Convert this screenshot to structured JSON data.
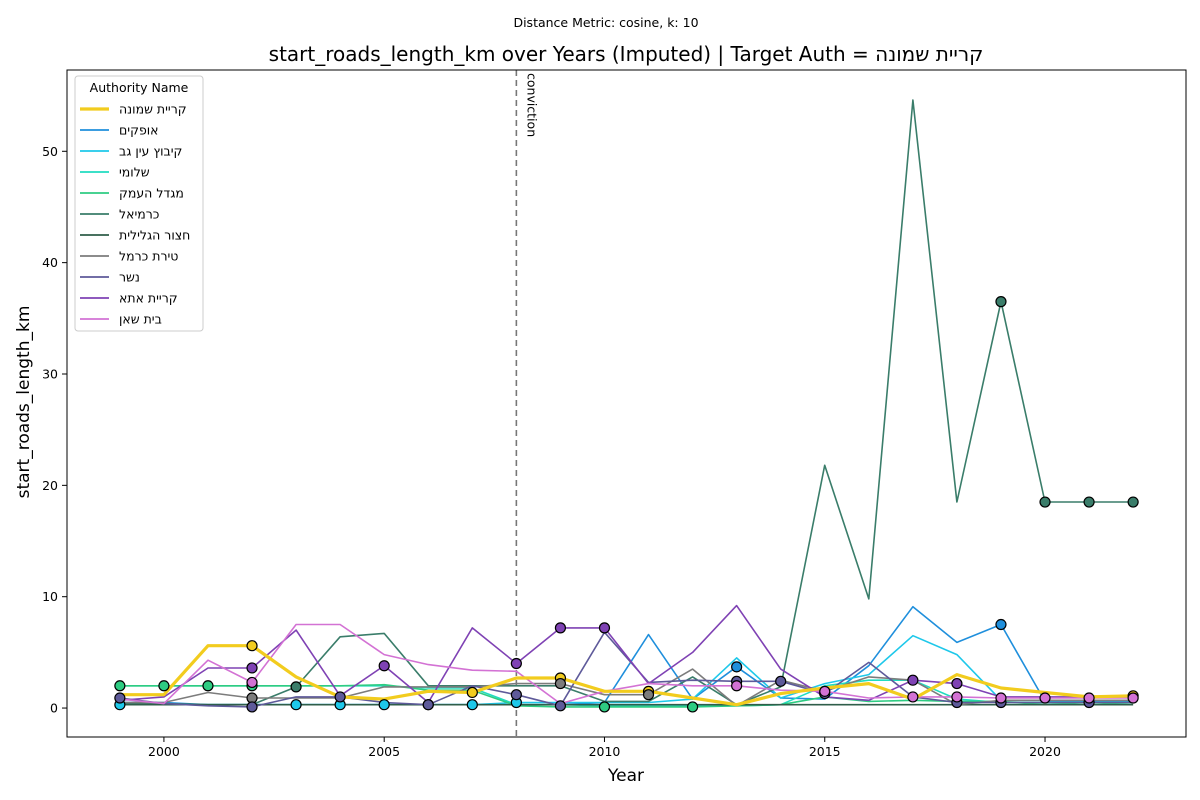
{
  "chart_data": {
    "type": "line",
    "suptitle": "Distance Metric: cosine, k: 10",
    "title": "start_roads_length_km over Years (Imputed) | Target Auth = קריית שמונה",
    "xlabel": "Year",
    "ylabel": "start_roads_length_km",
    "xlim": [
      1997.8,
      2023.2
    ],
    "ylim": [
      -2.6,
      57.3
    ],
    "xticks": [
      2000,
      2005,
      2010,
      2015,
      2020
    ],
    "yticks": [
      0,
      10,
      20,
      30,
      40,
      50
    ],
    "grid": false,
    "vline": {
      "x": 2008,
      "label": "conviction"
    },
    "legend": {
      "title": "Authority Name",
      "placement": "top-left"
    },
    "years": [
      1999,
      2000,
      2001,
      2002,
      2003,
      2004,
      2005,
      2006,
      2007,
      2008,
      2009,
      2010,
      2011,
      2012,
      2013,
      2014,
      2015,
      2016,
      2017,
      2018,
      2019,
      2020,
      2021,
      2022
    ],
    "series": [
      {
        "name": "קריית שמונה",
        "color": "#f2cc1e",
        "width": 3.2,
        "target": true,
        "values": [
          1.2,
          1.2,
          5.6,
          5.6,
          2.8,
          1.0,
          0.8,
          1.5,
          1.4,
          2.7,
          2.7,
          1.5,
          1.5,
          0.9,
          0.3,
          1.3,
          1.8,
          2.2,
          0.8,
          3.0,
          1.8,
          1.4,
          1.0,
          1.1
        ],
        "markers": [
          2002,
          2007,
          2009,
          2011,
          2022
        ]
      },
      {
        "name": "אופקים",
        "color": "#1f8fdc",
        "width": 1.6,
        "values": [
          0.5,
          0.5,
          0.3,
          0.3,
          0.3,
          0.3,
          0.3,
          0.3,
          0.3,
          0.3,
          0.3,
          0.5,
          6.6,
          0.8,
          3.7,
          0.9,
          0.8,
          3.8,
          9.1,
          5.9,
          7.5,
          0.6,
          0.6,
          0.6
        ],
        "markers": [
          2013,
          2019
        ]
      },
      {
        "name": "קיבוץ עין גב",
        "color": "#1ec8ea",
        "width": 1.6,
        "values": [
          0.3,
          0.3,
          0.3,
          0.3,
          0.3,
          0.3,
          0.3,
          0.3,
          0.3,
          0.5,
          0.5,
          0.5,
          0.5,
          0.8,
          4.5,
          0.9,
          2.2,
          3.0,
          6.5,
          4.8,
          0.7,
          0.7,
          0.7,
          0.7
        ],
        "markers": [
          1999,
          2003,
          2004,
          2005,
          2006,
          2007,
          2008
        ]
      },
      {
        "name": "שלומי",
        "color": "#21dcc0",
        "width": 1.6,
        "values": [
          2.0,
          2.0,
          2.0,
          2.0,
          2.0,
          2.0,
          2.0,
          1.8,
          1.8,
          0.3,
          0.3,
          0.2,
          0.2,
          0.2,
          0.2,
          0.3,
          2.0,
          2.5,
          2.5,
          0.8,
          0.5,
          0.5,
          0.5,
          0.5
        ],
        "markers": []
      },
      {
        "name": "מגדל העמק",
        "color": "#2ecc82",
        "width": 1.6,
        "values": [
          2.0,
          2.0,
          2.0,
          2.0,
          2.0,
          2.0,
          2.1,
          1.6,
          1.6,
          0.2,
          0.1,
          0.1,
          0.1,
          0.1,
          0.2,
          0.3,
          1.0,
          0.6,
          0.7,
          0.6,
          0.6,
          0.3,
          0.5,
          0.3
        ],
        "markers": [
          1999,
          2000,
          2001,
          2002,
          2010,
          2012
        ]
      },
      {
        "name": "כרמיאל",
        "color": "#3a7d6a",
        "width": 1.6,
        "values": [
          0.4,
          0.4,
          0.3,
          0.3,
          1.9,
          6.4,
          6.7,
          2.0,
          2.0,
          2.0,
          2.0,
          0.6,
          0.6,
          2.8,
          0.3,
          1.9,
          21.8,
          9.8,
          54.6,
          18.5,
          36.5,
          18.5,
          18.5,
          18.5
        ],
        "markers": [
          2003,
          2019,
          2020,
          2021,
          2022
        ]
      },
      {
        "name": "חצור הגלילית",
        "color": "#2f5e4a",
        "width": 1.6,
        "values": [
          0.3,
          0.3,
          0.3,
          0.3,
          0.3,
          0.3,
          0.3,
          0.3,
          0.3,
          0.3,
          0.3,
          0.3,
          0.3,
          0.3,
          0.3,
          0.3,
          0.3,
          0.3,
          0.3,
          0.3,
          0.3,
          0.3,
          0.3,
          0.3
        ],
        "markers": []
      },
      {
        "name": "טירת כרמל",
        "color": "#7c7c7c",
        "width": 1.6,
        "values": [
          0.5,
          0.5,
          1.4,
          0.9,
          0.9,
          0.9,
          1.9,
          1.9,
          1.9,
          2.2,
          2.2,
          1.2,
          1.2,
          3.5,
          0.2,
          2.5,
          1.5,
          2.8,
          2.5,
          0.3,
          0.7,
          0.7,
          0.7,
          0.7
        ],
        "markers": [
          2002,
          2009,
          2011
        ]
      },
      {
        "name": "נשר",
        "color": "#5e5a9a",
        "width": 1.6,
        "values": [
          0.9,
          0.4,
          0.2,
          0.1,
          1.0,
          1.0,
          0.5,
          0.3,
          2.0,
          1.2,
          0.2,
          6.8,
          2.3,
          2.5,
          2.4,
          2.4,
          1.3,
          4.1,
          1.0,
          0.5,
          0.5,
          0.5,
          0.5,
          0.5
        ],
        "markers": [
          1999,
          2002,
          2004,
          2006,
          2008,
          2009,
          2013,
          2014,
          2015,
          2018,
          2019,
          2021
        ]
      },
      {
        "name": "קריית אתא",
        "color": "#7f42b4",
        "width": 1.6,
        "values": [
          0.7,
          1.0,
          3.6,
          3.6,
          7.0,
          1.1,
          3.8,
          0.5,
          7.2,
          4.0,
          7.2,
          7.2,
          2.2,
          5.0,
          9.2,
          3.5,
          1.0,
          0.7,
          2.5,
          2.2,
          1.0,
          1.0,
          1.0,
          1.0
        ],
        "markers": [
          2002,
          2005,
          2008,
          2009,
          2010,
          2017,
          2018
        ]
      },
      {
        "name": "בית שאן",
        "color": "#d372d4",
        "width": 1.6,
        "values": [
          0.8,
          0.4,
          4.3,
          2.3,
          7.5,
          7.5,
          4.8,
          3.9,
          3.4,
          3.3,
          0.4,
          1.5,
          2.2,
          2.0,
          2.0,
          1.6,
          1.5,
          0.9,
          1.0,
          1.0,
          0.9,
          0.9,
          0.9,
          0.9
        ],
        "markers": [
          2002,
          2013,
          2015,
          2017,
          2018,
          2019,
          2020,
          2021,
          2022
        ]
      }
    ]
  }
}
